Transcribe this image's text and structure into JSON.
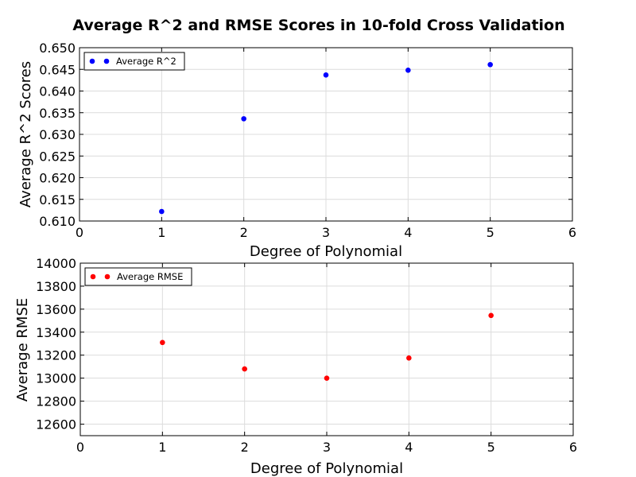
{
  "title": "Average R^2 and RMSE Scores in 10-fold Cross Validation",
  "chart_data": [
    {
      "type": "scatter",
      "xlabel": "Degree of Polynomial",
      "ylabel": "Average R^2 Scores",
      "xlim": [
        0,
        6
      ],
      "ylim": [
        0.61,
        0.65
      ],
      "x_ticks": [
        0,
        1,
        2,
        3,
        4,
        5,
        6
      ],
      "y_ticks": [
        0.61,
        0.615,
        0.62,
        0.625,
        0.63,
        0.635,
        0.64,
        0.645,
        0.65
      ],
      "tick_decimals": 3,
      "grid": true,
      "legend_position": "top-left",
      "series": [
        {
          "name": "Average R^2",
          "color": "#0000ff",
          "x": [
            1,
            2,
            3,
            4,
            5
          ],
          "y": [
            0.6122,
            0.6336,
            0.6437,
            0.6448,
            0.6461
          ]
        }
      ]
    },
    {
      "type": "scatter",
      "xlabel": "Degree of Polynomial",
      "ylabel": "Average RMSE",
      "xlim": [
        0,
        6
      ],
      "ylim": [
        12500,
        14000
      ],
      "x_ticks": [
        0,
        1,
        2,
        3,
        4,
        5,
        6
      ],
      "y_ticks": [
        12600,
        12800,
        13000,
        13200,
        13400,
        13600,
        13800,
        14000
      ],
      "tick_decimals": 0,
      "grid": true,
      "legend_position": "top-left",
      "series": [
        {
          "name": "Average RMSE",
          "color": "#ff0000",
          "x": [
            1,
            2,
            3,
            4,
            5
          ],
          "y": [
            13310,
            13080,
            13000,
            13175,
            13545
          ]
        }
      ]
    }
  ]
}
